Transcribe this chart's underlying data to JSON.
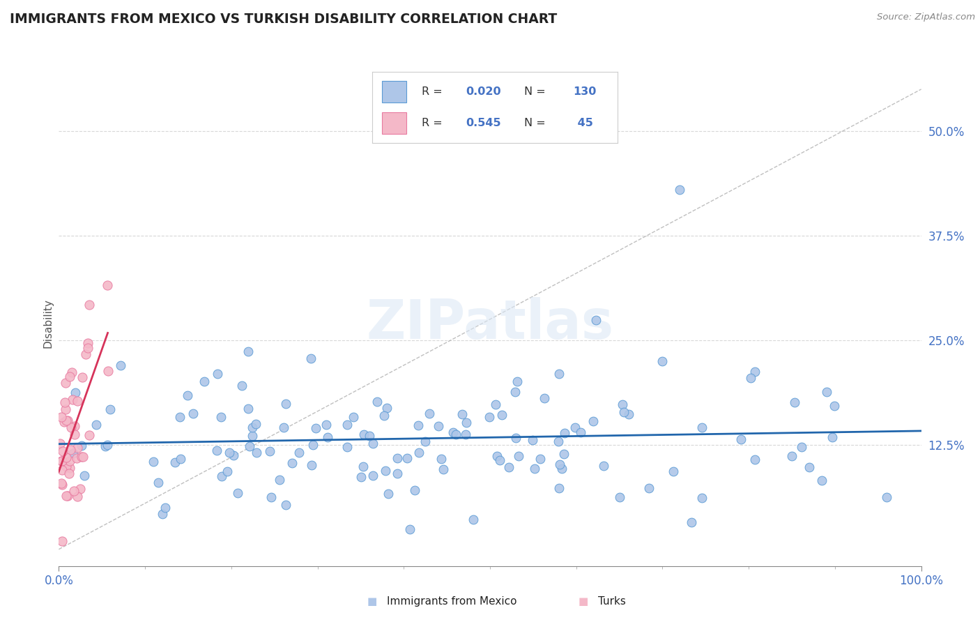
{
  "title": "IMMIGRANTS FROM MEXICO VS TURKISH DISABILITY CORRELATION CHART",
  "source": "Source: ZipAtlas.com",
  "ylabel_label": "Disability",
  "ylabel_ticks": [
    0.125,
    0.25,
    0.375,
    0.5
  ],
  "ylabel_ticklabels": [
    "12.5%",
    "25.0%",
    "37.5%",
    "50.0%"
  ],
  "xlim": [
    0.0,
    1.0
  ],
  "ylim": [
    -0.02,
    0.56
  ],
  "legend_series": [
    {
      "label": "Immigrants from Mexico",
      "R": "0.020",
      "N": "130",
      "color": "#aec6e8",
      "edge_color": "#5b9bd5",
      "line_color": "#2166ac"
    },
    {
      "label": "Turks",
      "R": "0.545",
      "N": " 45",
      "color": "#f4b8c8",
      "edge_color": "#e87aa0",
      "line_color": "#d6335a"
    }
  ],
  "watermark": "ZIPatlas",
  "background_color": "#ffffff",
  "grid_color": "#c8c8c8",
  "title_color": "#222222",
  "title_fontsize": 13.5,
  "axis_label_color": "#4472c4",
  "legend_text_color": "#4472c4",
  "legend_label_color": "#333333"
}
